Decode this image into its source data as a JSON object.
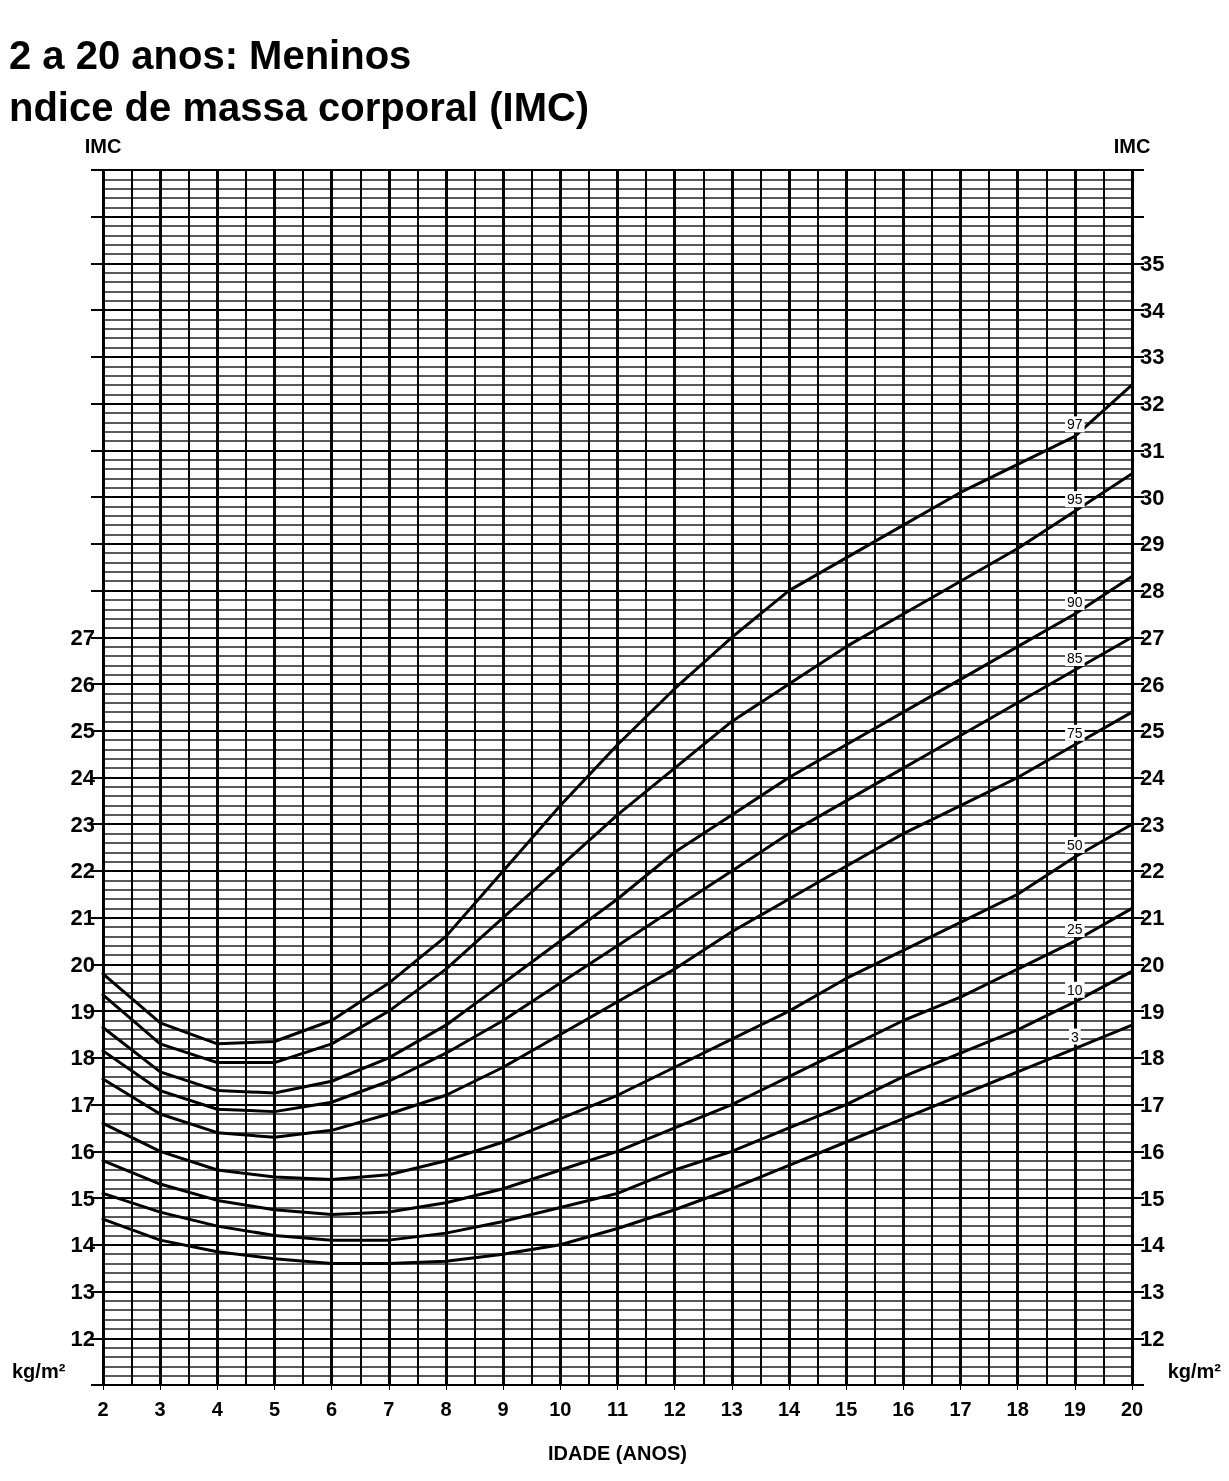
{
  "chart_data": {
    "type": "line",
    "title": "2 a 20 anos: Meninos",
    "subtitle": "ndice de massa corporal (IMC)",
    "xlabel": "IDADE (ANOS)",
    "ylabel": "IMC",
    "y2label": "IMC",
    "annotations": [
      "kg/m²",
      "kg/m²"
    ],
    "x": [
      2,
      3,
      4,
      5,
      6,
      7,
      8,
      9,
      10,
      11,
      12,
      13,
      14,
      15,
      16,
      17,
      18,
      19,
      20
    ],
    "series": [
      {
        "name": "97",
        "color": "#000000",
        "values": [
          19.8,
          18.75,
          18.3,
          18.35,
          18.8,
          19.6,
          20.6,
          22.0,
          23.4,
          24.7,
          25.9,
          27.0,
          28.0,
          28.7,
          29.4,
          30.1,
          30.7,
          31.3,
          32.4
        ]
      },
      {
        "name": "95",
        "color": "#000000",
        "values": [
          19.35,
          18.3,
          17.9,
          17.9,
          18.3,
          19.0,
          19.9,
          21.0,
          22.1,
          23.2,
          24.2,
          25.2,
          26.0,
          26.8,
          27.5,
          28.2,
          28.9,
          29.7,
          30.5
        ]
      },
      {
        "name": "90",
        "color": "#000000",
        "values": [
          18.65,
          17.7,
          17.3,
          17.25,
          17.5,
          18.0,
          18.7,
          19.6,
          20.5,
          21.4,
          22.4,
          23.2,
          24.0,
          24.7,
          25.4,
          26.1,
          26.8,
          27.5,
          28.3
        ]
      },
      {
        "name": "85",
        "color": "#000000",
        "values": [
          18.15,
          17.3,
          16.9,
          16.85,
          17.05,
          17.5,
          18.1,
          18.8,
          19.6,
          20.4,
          21.2,
          22.0,
          22.8,
          23.5,
          24.2,
          24.9,
          25.6,
          26.3,
          27.0
        ]
      },
      {
        "name": "75",
        "color": "#000000",
        "values": [
          17.55,
          16.8,
          16.4,
          16.3,
          16.45,
          16.8,
          17.2,
          17.8,
          18.5,
          19.2,
          19.9,
          20.7,
          21.4,
          22.1,
          22.8,
          23.4,
          24.0,
          24.7,
          25.4
        ]
      },
      {
        "name": "50",
        "color": "#000000",
        "values": [
          16.6,
          16.0,
          15.6,
          15.45,
          15.4,
          15.5,
          15.8,
          16.2,
          16.7,
          17.2,
          17.8,
          18.4,
          19.0,
          19.7,
          20.3,
          20.9,
          21.5,
          22.3,
          23.0
        ]
      },
      {
        "name": "25",
        "color": "#000000",
        "values": [
          15.8,
          15.3,
          14.95,
          14.75,
          14.65,
          14.7,
          14.9,
          15.2,
          15.6,
          16.0,
          16.5,
          17.0,
          17.6,
          18.2,
          18.8,
          19.3,
          19.9,
          20.5,
          21.2
        ]
      },
      {
        "name": "10",
        "color": "#000000",
        "values": [
          15.1,
          14.7,
          14.4,
          14.2,
          14.1,
          14.1,
          14.25,
          14.5,
          14.8,
          15.1,
          15.6,
          16.0,
          16.5,
          17.0,
          17.6,
          18.1,
          18.6,
          19.2,
          19.85
        ]
      },
      {
        "name": "3",
        "color": "#000000",
        "values": [
          14.55,
          14.1,
          13.85,
          13.7,
          13.6,
          13.6,
          13.65,
          13.8,
          14.0,
          14.35,
          14.75,
          15.2,
          15.7,
          16.2,
          16.7,
          17.2,
          17.7,
          18.2,
          18.7
        ]
      }
    ],
    "xlim": [
      2,
      20
    ],
    "xticks": [
      2,
      3,
      4,
      5,
      6,
      7,
      8,
      9,
      10,
      11,
      12,
      13,
      14,
      15,
      16,
      17,
      18,
      19,
      20
    ],
    "ylim": [
      11,
      37
    ],
    "yticks": [
      12,
      13,
      14,
      15,
      16,
      17,
      18,
      19,
      20,
      21,
      22,
      23,
      24,
      25,
      26,
      27
    ],
    "y2lim": [
      11,
      37
    ],
    "y2ticks": [
      12,
      13,
      14,
      15,
      16,
      17,
      18,
      19,
      20,
      21,
      22,
      23,
      24,
      25,
      26,
      27,
      28,
      29,
      30,
      31,
      32,
      33,
      34,
      35
    ],
    "grid": true,
    "marker": "none",
    "legend": false
  }
}
